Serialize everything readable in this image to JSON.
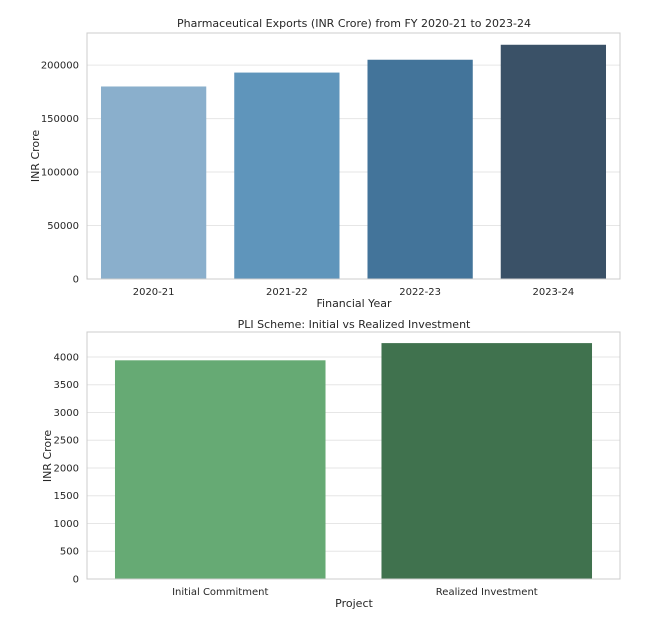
{
  "chart_data": [
    {
      "type": "bar",
      "title": "Pharmaceutical Exports (INR Crore) from FY 2020-21 to 2023-24",
      "xlabel": "Financial Year",
      "ylabel": "INR Crore",
      "categories": [
        "2020-21",
        "2021-22",
        "2022-23",
        "2023-24"
      ],
      "values": [
        180000,
        193000,
        205000,
        219000
      ],
      "colors": [
        "#8aafcc",
        "#5f95bb",
        "#43749a",
        "#3a5167"
      ],
      "ylim": [
        0,
        230000
      ],
      "yticks": [
        0,
        50000,
        100000,
        150000,
        200000
      ],
      "grid": true
    },
    {
      "type": "bar",
      "title": "PLI Scheme: Initial vs Realized Investment",
      "xlabel": "Project",
      "ylabel": "INR Crore",
      "categories": [
        "Initial Commitment",
        "Realized Investment"
      ],
      "values": [
        3940,
        4250
      ],
      "colors": [
        "#66aa74",
        "#40724e"
      ],
      "ylim": [
        0,
        4450
      ],
      "yticks": [
        0,
        500,
        1000,
        1500,
        2000,
        2500,
        3000,
        3500,
        4000
      ],
      "grid": true
    }
  ]
}
